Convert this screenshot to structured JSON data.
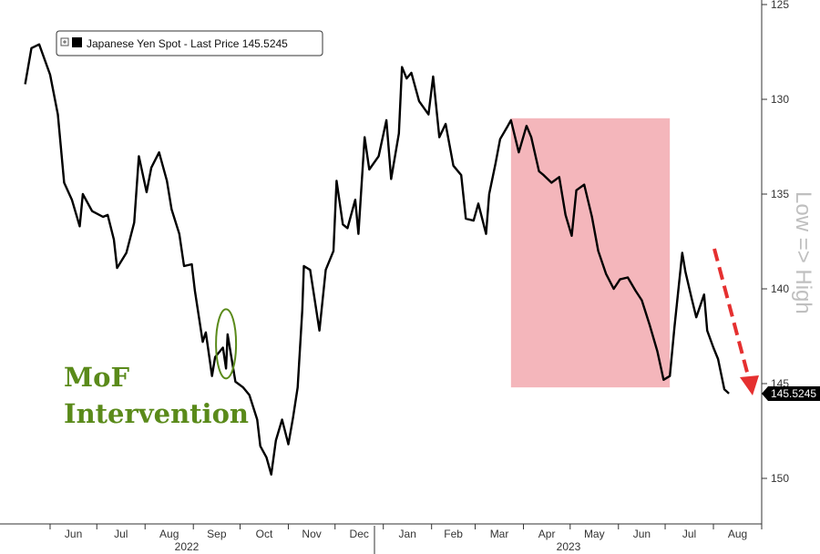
{
  "chart_data": {
    "type": "line",
    "legend": "Japanese Yen Spot - Last Price 145.5245",
    "series": [
      {
        "name": "Japanese Yen Spot",
        "x": [
          "2022-05-16",
          "2022-05-20",
          "2022-05-25",
          "2022-06-01",
          "2022-06-06",
          "2022-06-10",
          "2022-06-15",
          "2022-06-20",
          "2022-06-22",
          "2022-06-28",
          "2022-07-05",
          "2022-07-08",
          "2022-07-12",
          "2022-07-14",
          "2022-07-20",
          "2022-07-25",
          "2022-07-28",
          "2022-08-02",
          "2022-08-05",
          "2022-08-10",
          "2022-08-15",
          "2022-08-18",
          "2022-08-23",
          "2022-08-26",
          "2022-08-31",
          "2022-09-02",
          "2022-09-07",
          "2022-09-09",
          "2022-09-13",
          "2022-09-15",
          "2022-09-20",
          "2022-09-22",
          "2022-09-23",
          "2022-09-28",
          "2022-10-03",
          "2022-10-07",
          "2022-10-12",
          "2022-10-14",
          "2022-10-18",
          "2022-10-21",
          "2022-10-24",
          "2022-10-28",
          "2022-11-01",
          "2022-11-04",
          "2022-11-07",
          "2022-11-10",
          "2022-11-11",
          "2022-11-15",
          "2022-11-21",
          "2022-11-25",
          "2022-11-30",
          "2022-12-02",
          "2022-12-06",
          "2022-12-09",
          "2022-12-14",
          "2022-12-16",
          "2022-12-20",
          "2022-12-23",
          "2022-12-29",
          "2023-01-03",
          "2023-01-06",
          "2023-01-11",
          "2023-01-13",
          "2023-01-16",
          "2023-01-19",
          "2023-01-24",
          "2023-01-30",
          "2023-02-02",
          "2023-02-06",
          "2023-02-10",
          "2023-02-15",
          "2023-02-20",
          "2023-02-23",
          "2023-02-28",
          "2023-03-03",
          "2023-03-08",
          "2023-03-10",
          "2023-03-14",
          "2023-03-17",
          "2023-03-22",
          "2023-03-24",
          "2023-03-29",
          "2023-04-03",
          "2023-04-06",
          "2023-04-11",
          "2023-04-14",
          "2023-04-19",
          "2023-04-24",
          "2023-04-28",
          "2023-05-02",
          "2023-05-05",
          "2023-05-10",
          "2023-05-15",
          "2023-05-19",
          "2023-05-24",
          "2023-05-29",
          "2023-06-02",
          "2023-06-07",
          "2023-06-12",
          "2023-06-16",
          "2023-06-21",
          "2023-06-26",
          "2023-06-30",
          "2023-07-04",
          "2023-07-07",
          "2023-07-12",
          "2023-07-14",
          "2023-07-18",
          "2023-07-21",
          "2023-07-26",
          "2023-07-28",
          "2023-08-01",
          "2023-08-04",
          "2023-08-08",
          "2023-08-11"
        ],
        "values": [
          129.2,
          127.3,
          127.1,
          128.7,
          130.8,
          134.4,
          135.3,
          136.7,
          135.0,
          135.9,
          136.2,
          136.1,
          137.4,
          138.9,
          138.1,
          136.5,
          133.0,
          134.9,
          133.6,
          132.8,
          134.3,
          135.8,
          137.1,
          138.8,
          138.7,
          140.1,
          142.8,
          142.3,
          144.6,
          143.6,
          143.1,
          144.2,
          142.4,
          144.9,
          145.2,
          145.6,
          146.9,
          148.3,
          148.9,
          149.8,
          148.0,
          146.9,
          148.2,
          146.8,
          145.2,
          141.1,
          138.8,
          139.0,
          142.2,
          139.0,
          138.0,
          134.3,
          136.6,
          136.8,
          135.3,
          137.1,
          132.0,
          133.7,
          133.0,
          131.1,
          134.2,
          131.8,
          128.3,
          128.9,
          128.6,
          130.1,
          130.8,
          128.8,
          132.0,
          131.3,
          133.5,
          134.0,
          136.3,
          136.4,
          135.5,
          137.1,
          135.0,
          133.4,
          132.1,
          131.4,
          131.1,
          132.8,
          131.4,
          132.0,
          133.8,
          134.0,
          134.4,
          134.1,
          136.1,
          137.2,
          134.8,
          134.5,
          136.2,
          138.0,
          139.2,
          140.0,
          139.5,
          139.4,
          140.1,
          140.6,
          141.9,
          143.3,
          144.8,
          144.6,
          142.0,
          138.1,
          139.1,
          140.5,
          141.5,
          140.3,
          142.2,
          143.1,
          143.7,
          145.3,
          145.5245
        ]
      }
    ],
    "ylim": [
      152,
      125
    ],
    "yticks": [
      125,
      130,
      135,
      140,
      145,
      150
    ],
    "y_axis_side": "right",
    "y_axis_inverted": true,
    "y_side_label": "Low => High",
    "x_month_labels": [
      "Jun",
      "Jul",
      "Aug",
      "Sep",
      "Oct",
      "Nov",
      "Dec",
      "Jan",
      "Feb",
      "Mar",
      "Apr",
      "May",
      "Jun",
      "Jul",
      "Aug"
    ],
    "x_year_labels": [
      "2022",
      "2023"
    ],
    "last_price_label": "145.5245",
    "annotations": {
      "intervention_line1": "MoF",
      "intervention_line2": "Intervention",
      "intervention_date": "2022-09-22",
      "shaded_start": "2023-03-24",
      "shaded_end": "2023-07-04",
      "shaded_top": 131,
      "shaded_bottom": 145.2
    },
    "colors": {
      "line": "#000000",
      "shade": "#f4b6bb",
      "annotation": "#5a8a1a",
      "arrow": "#e53030",
      "label_bg": "#000000"
    },
    "grid": false,
    "legend_position": "top-left"
  }
}
